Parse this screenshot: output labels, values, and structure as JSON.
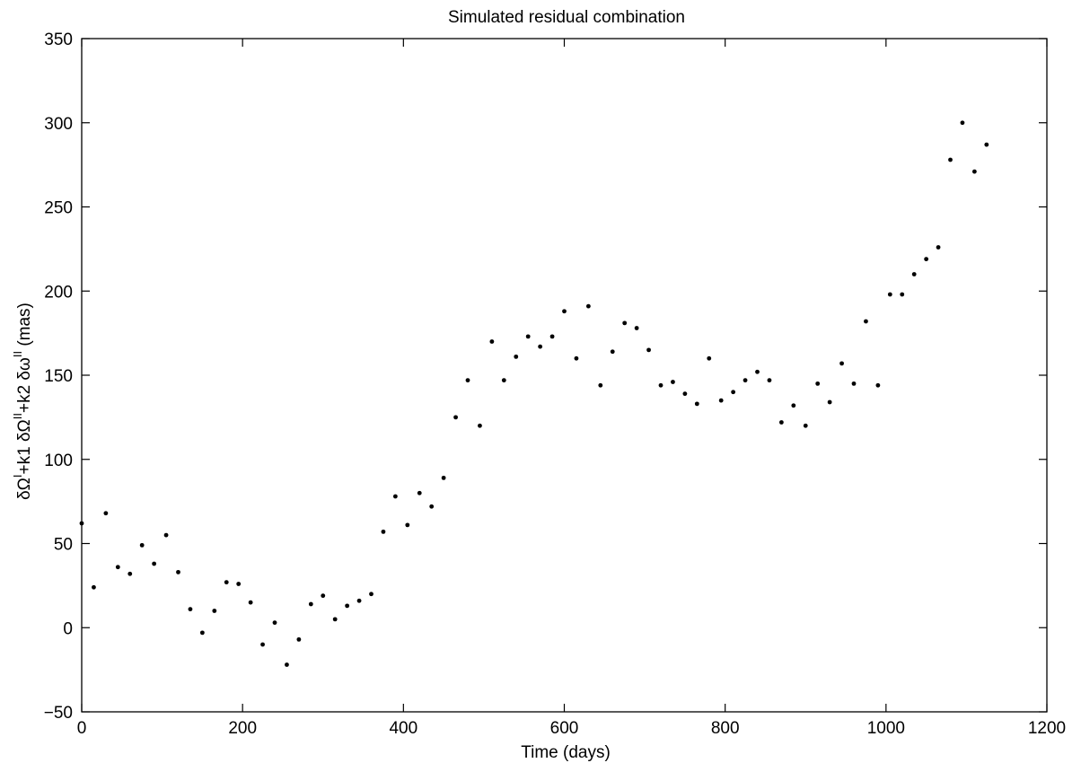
{
  "chart_data": {
    "type": "scatter",
    "title": "Simulated residual combination",
    "xlabel": "Time (days)",
    "ylabel": {
      "parts": [
        "δΩ",
        "I",
        "+k1 δΩ",
        "II",
        "+k2 δω",
        "II",
        " (mas)"
      ]
    },
    "xlim": [
      0,
      1200
    ],
    "ylim": [
      -50,
      350
    ],
    "xticks": [
      0,
      200,
      400,
      600,
      800,
      1000,
      1200
    ],
    "yticks": [
      -50,
      0,
      50,
      100,
      150,
      200,
      250,
      300,
      350
    ],
    "xtick_labels": [
      "0",
      "200",
      "400",
      "600",
      "800",
      "1000",
      "1200"
    ],
    "ytick_labels": [
      "−50",
      "0",
      "50",
      "100",
      "150",
      "200",
      "250",
      "300",
      "350"
    ],
    "grid": false,
    "marker_color": "#000000",
    "series": [
      {
        "x": [
          0,
          15,
          30,
          45,
          60,
          75,
          90,
          105,
          120,
          135,
          150,
          165,
          180,
          195,
          210,
          225,
          240,
          255,
          270,
          285,
          300,
          315,
          330,
          345,
          360,
          375,
          390,
          405,
          420,
          435,
          450,
          465,
          480,
          495,
          510,
          525,
          540,
          555,
          570,
          585,
          600,
          615,
          630,
          645,
          660,
          675,
          690,
          705,
          720,
          735,
          750,
          765,
          780,
          795,
          810,
          825,
          840,
          855,
          870,
          885,
          900,
          915,
          930,
          945,
          960,
          975,
          990,
          1005,
          1020,
          1035,
          1050,
          1065,
          1080,
          1095,
          1110,
          1125
        ],
        "y": [
          62,
          24,
          68,
          36,
          32,
          49,
          38,
          55,
          33,
          11,
          -3,
          10,
          27,
          26,
          15,
          -10,
          3,
          -22,
          -7,
          14,
          19,
          5,
          13,
          16,
          20,
          57,
          78,
          61,
          80,
          72,
          89,
          125,
          147,
          120,
          170,
          147,
          161,
          173,
          167,
          173,
          188,
          160,
          191,
          144,
          164,
          181,
          178,
          165,
          144,
          146,
          139,
          133,
          160,
          135,
          140,
          147,
          152,
          147,
          122,
          132,
          120,
          145,
          134,
          157,
          145,
          182,
          144,
          198,
          198,
          210,
          219,
          226,
          278,
          300,
          271,
          287
        ]
      }
    ]
  }
}
